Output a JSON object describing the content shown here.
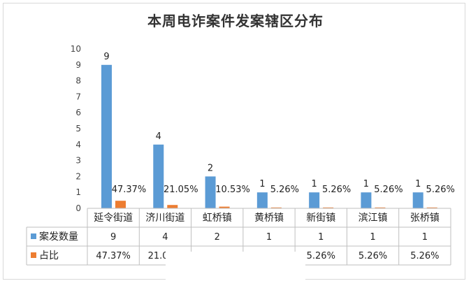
{
  "chart_data": {
    "type": "bar",
    "title": "本周电诈案件发案辖区分布",
    "categories": [
      "延令街道",
      "济川街道",
      "虹桥镇",
      "黄桥镇",
      "新街镇",
      "滨江镇",
      "张桥镇"
    ],
    "series": [
      {
        "name": "案发数量",
        "color": "#5b9bd5",
        "values": [
          9,
          4,
          2,
          1,
          1,
          1,
          1
        ],
        "labels": [
          "9",
          "4",
          "2",
          "1",
          "1",
          "1",
          "1"
        ]
      },
      {
        "name": "占比",
        "color": "#ed7d31",
        "values": [
          0.4737,
          0.2105,
          0.1053,
          0.0526,
          0.0526,
          0.0526,
          0.0526
        ],
        "labels": [
          "47.37%",
          "21.05%",
          "10.53%",
          "5.26%",
          "5.26%",
          "5.26%",
          "5.26%"
        ]
      }
    ],
    "y_ticks": [
      "0",
      "1",
      "2",
      "3",
      "4",
      "5",
      "6",
      "7",
      "8",
      "9",
      "10"
    ],
    "ylim": [
      0,
      10
    ],
    "grid": false,
    "legend": "data-table"
  }
}
